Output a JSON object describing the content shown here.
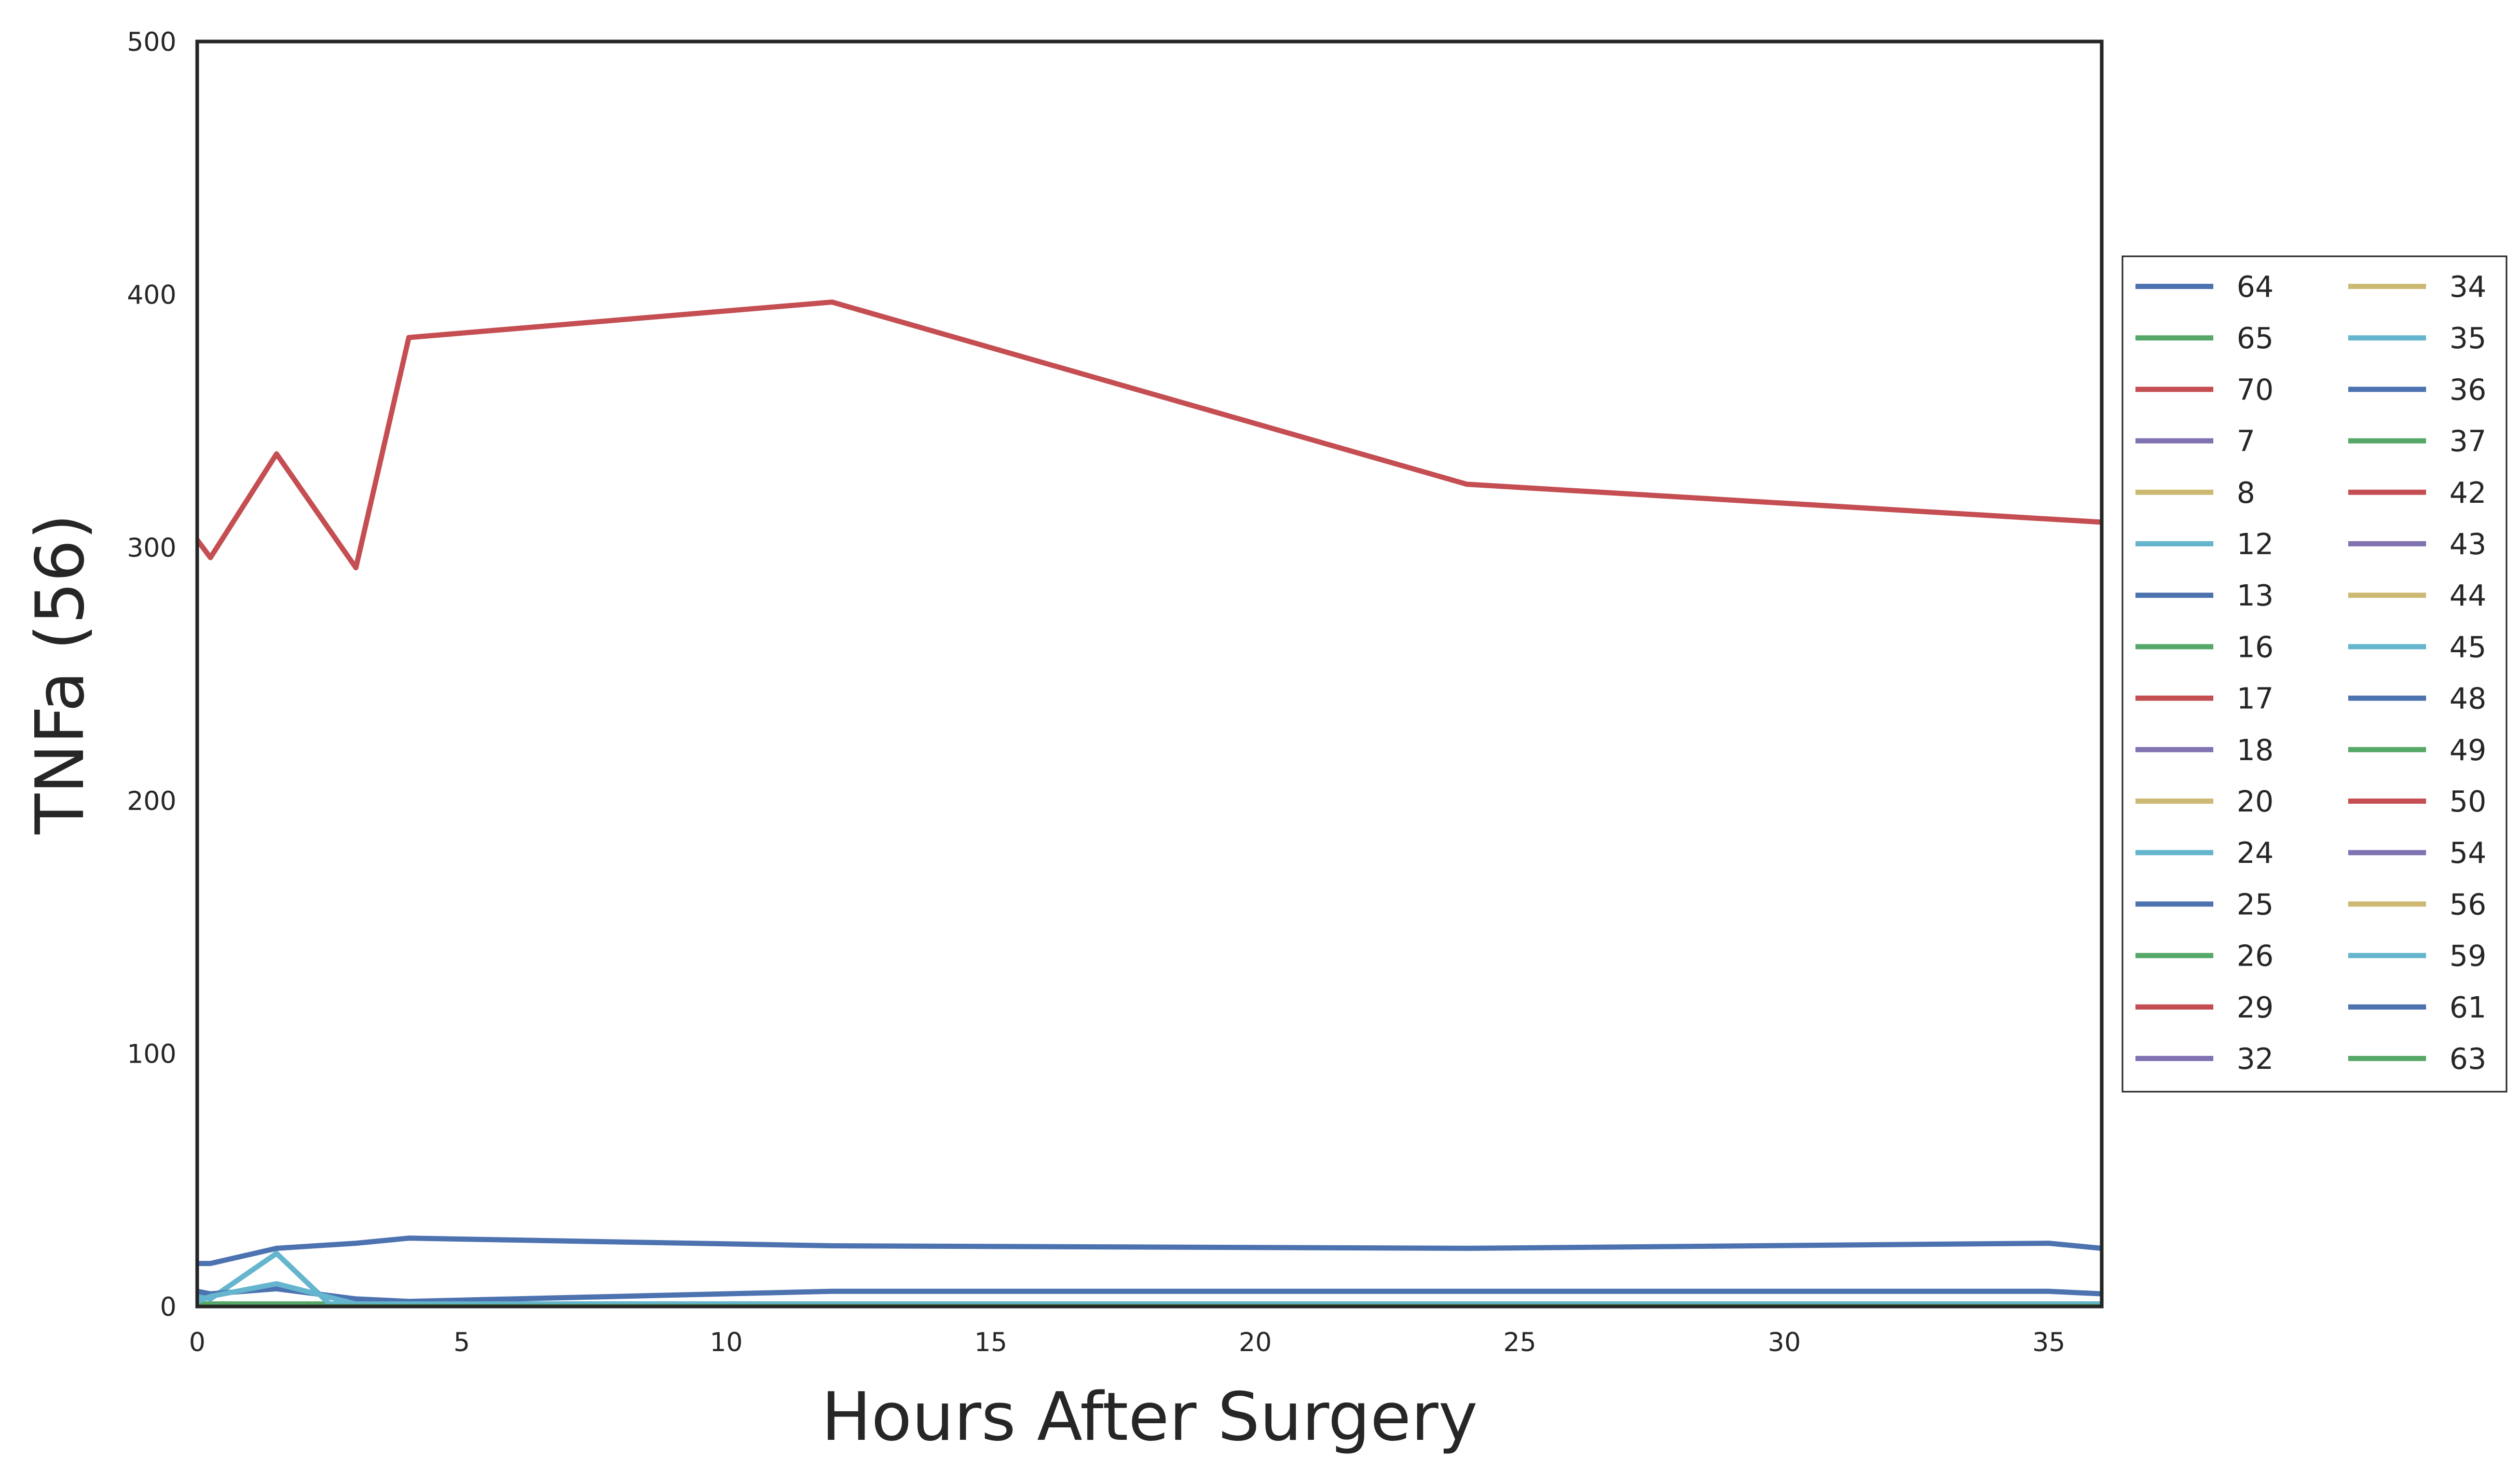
{
  "chart_data": {
    "type": "line",
    "xlabel": "Hours After Surgery",
    "ylabel": "TNFa (56)",
    "xlim": [
      0,
      36
    ],
    "ylim": [
      0,
      500
    ],
    "xticks": [
      0,
      5,
      10,
      15,
      20,
      25,
      30,
      35
    ],
    "yticks": [
      0,
      100,
      200,
      300,
      400,
      500
    ],
    "grid": false,
    "legend_position": "right",
    "legend_columns": 2,
    "palette": [
      "#4c72b0",
      "#55a868",
      "#c44e52",
      "#8172b2",
      "#ccb974",
      "#64b5cd"
    ],
    "series": [
      {
        "name": "64",
        "color": "#4c72b0",
        "x": [
          0,
          0.25,
          1.5,
          3,
          4,
          12,
          24,
          35,
          36
        ],
        "y": [
          17,
          17,
          23,
          25,
          27,
          24,
          23,
          25,
          23
        ]
      },
      {
        "name": "65",
        "color": "#55a868",
        "x": [
          0,
          4,
          12,
          24,
          36
        ],
        "y": [
          1,
          1,
          1,
          1,
          1
        ]
      },
      {
        "name": "70",
        "color": "#c44e52",
        "x": [
          0,
          0.25,
          1.5,
          3,
          4,
          12,
          24,
          36
        ],
        "y": [
          303,
          296,
          337,
          292,
          383,
          397,
          325,
          310
        ]
      },
      {
        "name": "7",
        "color": "#8172b2",
        "x": [
          0,
          36
        ],
        "y": [
          0,
          0
        ]
      },
      {
        "name": "8",
        "color": "#ccb974",
        "x": [
          0,
          36
        ],
        "y": [
          0,
          0
        ]
      },
      {
        "name": "12",
        "color": "#64b5cd",
        "x": [
          0,
          0.25,
          1.5,
          2.5,
          4,
          36
        ],
        "y": [
          4,
          3,
          21,
          1,
          1,
          1
        ]
      },
      {
        "name": "13",
        "color": "#4c72b0",
        "x": [
          0,
          0.25,
          1.5,
          3,
          4,
          12,
          24,
          35,
          36
        ],
        "y": [
          6,
          5,
          7,
          3,
          2,
          6,
          6,
          6,
          5
        ]
      },
      {
        "name": "16",
        "color": "#55a868",
        "x": [
          0,
          36
        ],
        "y": [
          0,
          0
        ]
      },
      {
        "name": "17",
        "color": "#c44e52",
        "x": [
          0,
          36
        ],
        "y": [
          0,
          0
        ]
      },
      {
        "name": "18",
        "color": "#8172b2",
        "x": [
          0,
          36
        ],
        "y": [
          0,
          0
        ]
      },
      {
        "name": "20",
        "color": "#ccb974",
        "x": [
          0,
          36
        ],
        "y": [
          0,
          0
        ]
      },
      {
        "name": "24",
        "color": "#64b5cd",
        "x": [
          0,
          0.25,
          1.5,
          3,
          36
        ],
        "y": [
          2,
          4,
          9,
          1,
          1
        ]
      },
      {
        "name": "25",
        "color": "#4c72b0",
        "x": [
          0,
          36
        ],
        "y": [
          0,
          0
        ]
      },
      {
        "name": "26",
        "color": "#55a868",
        "x": [
          0,
          36
        ],
        "y": [
          0,
          0
        ]
      },
      {
        "name": "29",
        "color": "#c44e52",
        "x": [
          0,
          36
        ],
        "y": [
          0,
          0
        ]
      },
      {
        "name": "32",
        "color": "#8172b2",
        "x": [
          0,
          36
        ],
        "y": [
          0,
          0
        ]
      },
      {
        "name": "34",
        "color": "#ccb974",
        "x": [
          0,
          36
        ],
        "y": [
          0,
          0
        ]
      },
      {
        "name": "35",
        "color": "#64b5cd",
        "x": [
          0,
          36
        ],
        "y": [
          0,
          0
        ]
      },
      {
        "name": "36",
        "color": "#4c72b0",
        "x": [
          0,
          36
        ],
        "y": [
          0,
          0
        ]
      },
      {
        "name": "37",
        "color": "#55a868",
        "x": [
          0,
          36
        ],
        "y": [
          0,
          0
        ]
      },
      {
        "name": "42",
        "color": "#c44e52",
        "x": [
          0,
          36
        ],
        "y": [
          0,
          0
        ]
      },
      {
        "name": "43",
        "color": "#8172b2",
        "x": [
          0,
          36
        ],
        "y": [
          0,
          0
        ]
      },
      {
        "name": "44",
        "color": "#ccb974",
        "x": [
          0,
          36
        ],
        "y": [
          0,
          0
        ]
      },
      {
        "name": "45",
        "color": "#64b5cd",
        "x": [
          0,
          36
        ],
        "y": [
          0,
          0
        ]
      },
      {
        "name": "48",
        "color": "#4c72b0",
        "x": [
          0,
          36
        ],
        "y": [
          0,
          0
        ]
      },
      {
        "name": "49",
        "color": "#55a868",
        "x": [
          0,
          36
        ],
        "y": [
          0,
          0
        ]
      },
      {
        "name": "50",
        "color": "#c44e52",
        "x": [
          0,
          36
        ],
        "y": [
          0,
          0
        ]
      },
      {
        "name": "54",
        "color": "#8172b2",
        "x": [
          0,
          36
        ],
        "y": [
          0,
          0
        ]
      },
      {
        "name": "56",
        "color": "#ccb974",
        "x": [
          0,
          36
        ],
        "y": [
          0,
          0
        ]
      },
      {
        "name": "59",
        "color": "#64b5cd",
        "x": [
          0,
          36
        ],
        "y": [
          0,
          0
        ]
      },
      {
        "name": "61",
        "color": "#4c72b0",
        "x": [
          0,
          36
        ],
        "y": [
          0,
          0
        ]
      },
      {
        "name": "63",
        "color": "#55a868",
        "x": [
          0,
          36
        ],
        "y": [
          0,
          0
        ]
      }
    ]
  }
}
